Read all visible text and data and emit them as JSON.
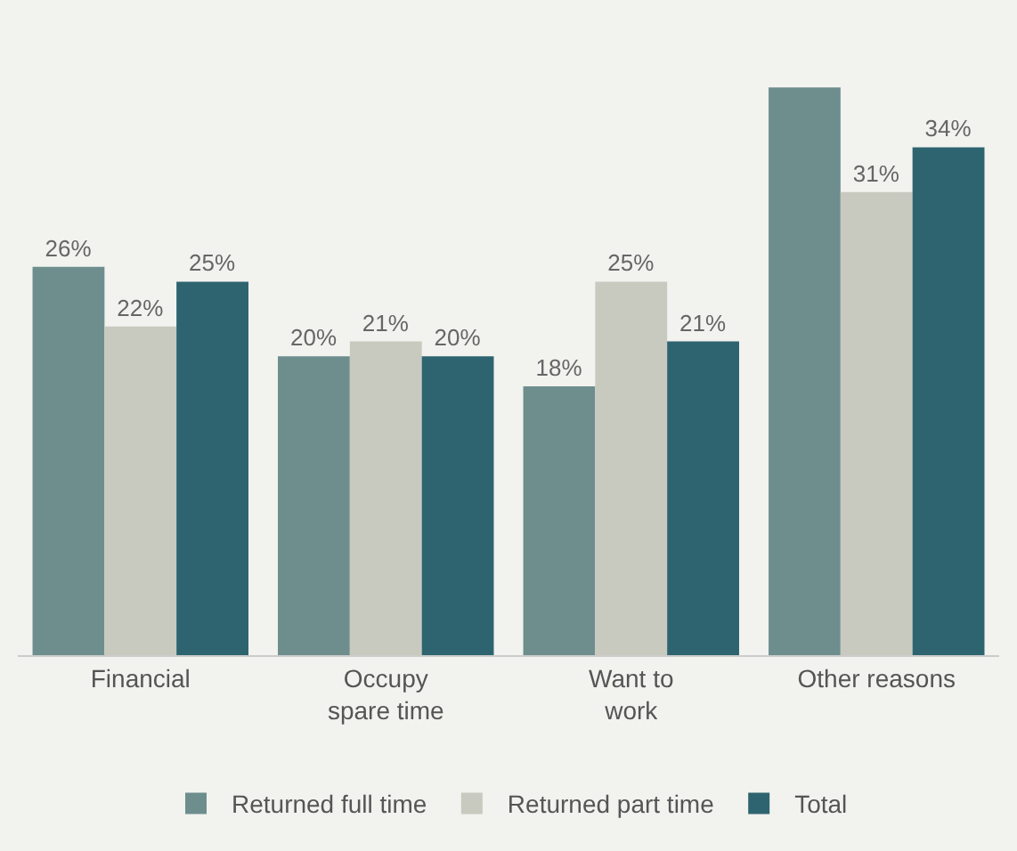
{
  "chart_data": {
    "type": "bar",
    "categories": [
      "Financial",
      "Occupy\nspare time",
      "Want to\nwork",
      "Other reasons"
    ],
    "series": [
      {
        "name": "Returned full time",
        "color": "#6e8e8e",
        "values": [
          26,
          20,
          18,
          38
        ],
        "value_labels": [
          "26%",
          "20%",
          "18%",
          null
        ]
      },
      {
        "name": "Returned part time",
        "color": "#c8cac0",
        "values": [
          22,
          21,
          25,
          31
        ],
        "value_labels": [
          "22%",
          "21%",
          "25%",
          "31%"
        ]
      },
      {
        "name": "Total",
        "color": "#2e6470",
        "values": [
          25,
          20,
          21,
          34
        ],
        "value_labels": [
          "25%",
          "20%",
          "21%",
          "34%"
        ]
      }
    ],
    "legend": "bottom",
    "grid": false
  }
}
